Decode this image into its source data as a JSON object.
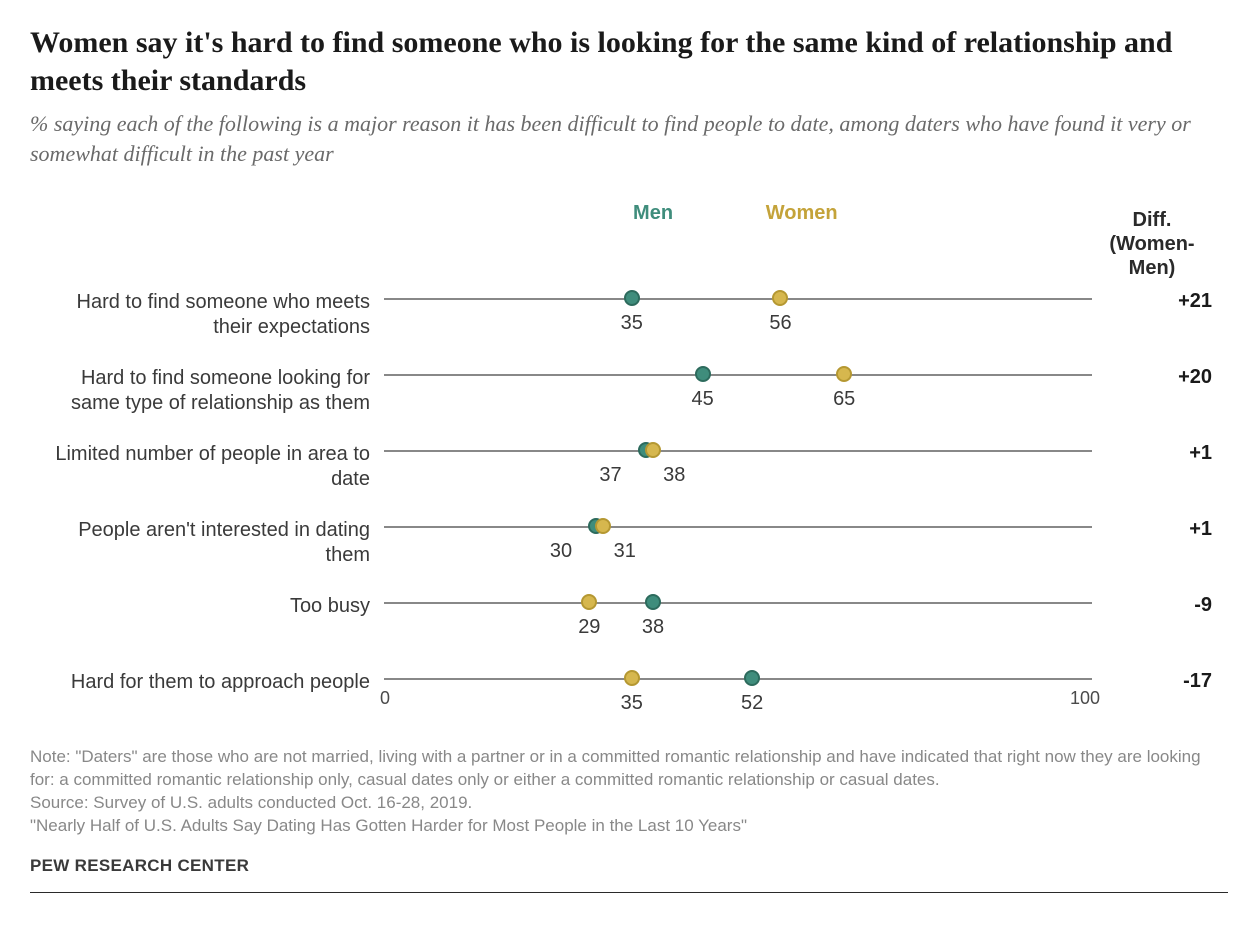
{
  "title": "Women say it's hard to find someone who is looking for the same kind of relationship and meets their standards",
  "subtitle": "% saying each of the following is a major reason it has been difficult to find people to date, among daters who have found it very or somewhat difficult in the past year",
  "chart": {
    "type": "dot-plot",
    "xlim": [
      0,
      100
    ],
    "axis_labels": {
      "min": "0",
      "max": "100"
    },
    "series": {
      "men": {
        "label": "Men",
        "color": "#3f8d7c",
        "border": "#2d6b5d",
        "legend_pos": 38
      },
      "women": {
        "label": "Women",
        "color": "#d6b74e",
        "border": "#b59832",
        "legend_pos": 59
      }
    },
    "diff_header": {
      "line1": "Diff.",
      "line2": "(Women-Men)"
    },
    "rows": [
      {
        "label": "Hard to find someone who meets their expectations",
        "men": 35,
        "women": 56,
        "diff": "+21",
        "men_label_shift": 0,
        "women_label_shift": 0
      },
      {
        "label": "Hard to find someone looking for same type of relationship as them",
        "men": 45,
        "women": 65,
        "diff": "+20",
        "men_label_shift": 0,
        "women_label_shift": 0
      },
      {
        "label": "Limited number of people in area to date",
        "men": 37,
        "women": 38,
        "diff": "+1",
        "men_label_shift": -5,
        "women_label_shift": 3
      },
      {
        "label": "People aren't interested in dating them",
        "men": 30,
        "women": 31,
        "diff": "+1",
        "men_label_shift": -5,
        "women_label_shift": 3
      },
      {
        "label": "Too busy",
        "men": 38,
        "women": 29,
        "diff": "-9",
        "men_label_shift": 0,
        "women_label_shift": 0
      },
      {
        "label": "Hard for them to approach people",
        "men": 52,
        "women": 35,
        "diff": "-17",
        "men_label_shift": 0,
        "women_label_shift": 0
      }
    ]
  },
  "note1": "Note: \"Daters\" are those who are not married, living with a partner or in a committed romantic relationship and have indicated that right now they are looking for: a committed romantic relationship only, casual dates only or either a committed romantic relationship or casual dates.",
  "note2": "Source: Survey of U.S. adults conducted Oct. 16-28, 2019.",
  "note3": "\"Nearly Half of U.S. Adults Say Dating Has Gotten Harder for Most People in the Last 10 Years\"",
  "footer": "PEW RESEARCH CENTER"
}
